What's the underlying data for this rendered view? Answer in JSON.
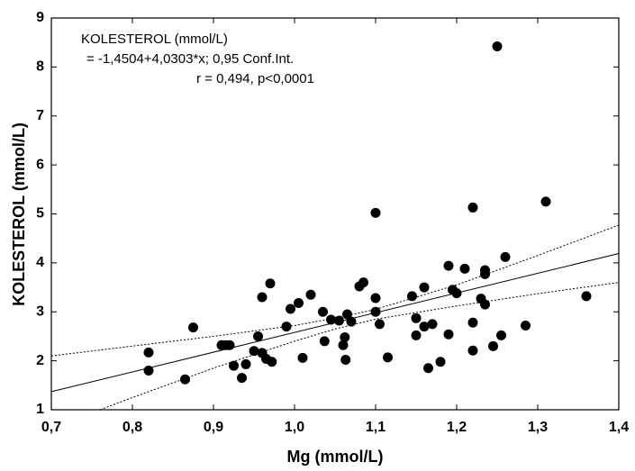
{
  "chart_data": {
    "type": "scatter",
    "annotations": [
      "KOLESTEROL (mmol/L)",
      "= -1,4504+4,0303*x; 0,95 Conf.Int.",
      "r = 0,494, p<0,0001"
    ],
    "xlabel": "Mg (mmol/L)",
    "ylabel": "KOLESTEROL (mmol/L)",
    "xlim": [
      0.7,
      1.4
    ],
    "ylim": [
      1,
      9
    ],
    "xticks": [
      {
        "value": 0.7,
        "label": "0,7"
      },
      {
        "value": 0.8,
        "label": "0,8"
      },
      {
        "value": 0.9,
        "label": "0,9"
      },
      {
        "value": 1.0,
        "label": "1,0"
      },
      {
        "value": 1.1,
        "label": "1,1"
      },
      {
        "value": 1.2,
        "label": "1,2"
      },
      {
        "value": 1.3,
        "label": "1,3"
      },
      {
        "value": 1.4,
        "label": "1,4"
      }
    ],
    "yticks": [
      1,
      2,
      3,
      4,
      5,
      6,
      7,
      8,
      9
    ],
    "color": "#000000",
    "points": {
      "x": [
        0.82,
        0.82,
        0.865,
        0.875,
        0.91,
        0.915,
        0.92,
        0.925,
        0.935,
        0.94,
        0.95,
        0.955,
        0.96,
        0.96,
        0.965,
        0.97,
        0.972,
        0.99,
        0.995,
        1.005,
        1.01,
        1.02,
        1.035,
        1.037,
        1.045,
        1.055,
        1.06,
        1.062,
        1.063,
        1.065,
        1.07,
        1.08,
        1.085,
        1.1,
        1.1,
        1.1,
        1.105,
        1.115,
        1.145,
        1.15,
        1.15,
        1.16,
        1.16,
        1.165,
        1.17,
        1.18,
        1.19,
        1.19,
        1.195,
        1.2,
        1.21,
        1.22,
        1.22,
        1.22,
        1.23,
        1.235,
        1.235,
        1.235,
        1.245,
        1.25,
        1.255,
        1.26,
        1.285,
        1.31,
        1.36
      ],
      "y": [
        2.17,
        1.8,
        1.62,
        2.68,
        2.32,
        2.32,
        2.32,
        1.9,
        1.65,
        1.93,
        2.2,
        2.5,
        3.3,
        2.16,
        2.04,
        3.58,
        1.98,
        2.7,
        3.06,
        3.18,
        2.06,
        3.35,
        3.0,
        2.4,
        2.84,
        2.82,
        2.32,
        2.48,
        2.02,
        2.95,
        2.8,
        3.52,
        3.6,
        5.02,
        3.28,
        3.0,
        2.75,
        2.07,
        3.32,
        2.87,
        2.52,
        3.5,
        2.7,
        1.85,
        2.75,
        1.98,
        3.94,
        2.54,
        3.45,
        3.38,
        3.88,
        5.13,
        2.78,
        2.21,
        3.27,
        3.85,
        3.77,
        3.15,
        2.3,
        8.42,
        2.52,
        4.12,
        2.72,
        5.25,
        3.32
      ]
    },
    "fit": {
      "x": [
        0.7,
        1.4
      ],
      "y": [
        1.37,
        4.19
      ]
    },
    "ci_upper": {
      "x": [
        0.7,
        0.8,
        0.9,
        1.0,
        1.05,
        1.1,
        1.2,
        1.3,
        1.4
      ],
      "y": [
        2.1,
        2.3,
        2.5,
        2.72,
        2.87,
        3.05,
        3.55,
        4.15,
        4.77
      ]
    },
    "ci_lower": {
      "x": [
        0.76,
        0.8,
        0.9,
        1.0,
        1.05,
        1.1,
        1.2,
        1.3,
        1.4
      ],
      "y": [
        1.0,
        1.25,
        1.85,
        2.4,
        2.65,
        2.85,
        3.12,
        3.37,
        3.6
      ]
    }
  }
}
